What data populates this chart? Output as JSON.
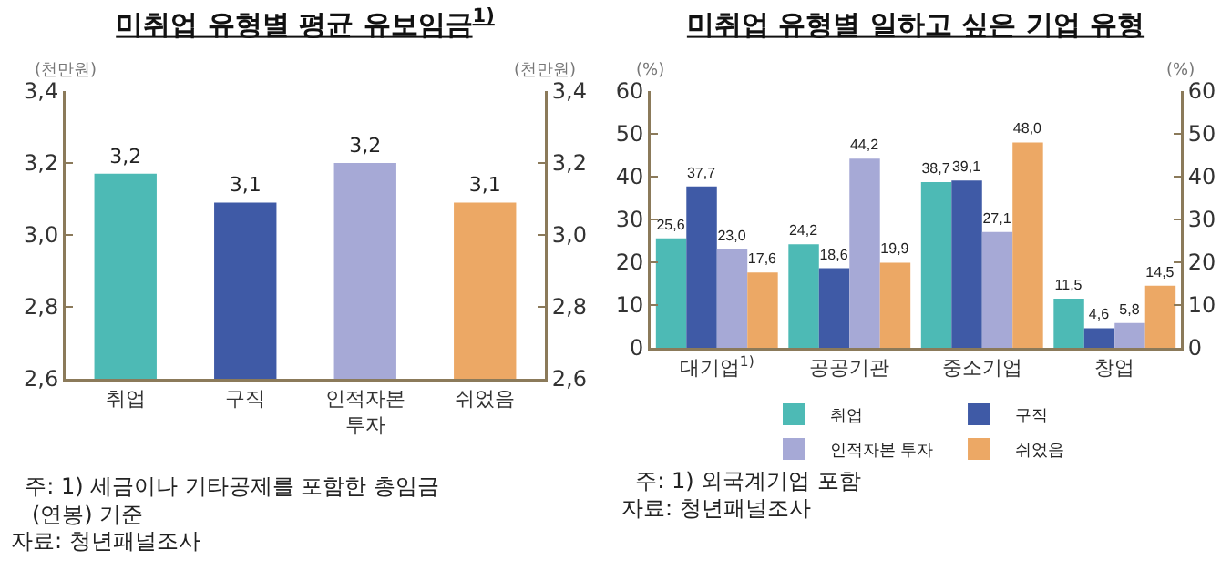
{
  "chart_data": [
    {
      "type": "bar",
      "title": "미취업 유형별 평균 유보임금$^{1)}$",
      "ylabel": "(천만원)",
      "y2label": "(천만원)",
      "categories": [
        "취업",
        "구직",
        "인적자본 투자",
        "쉬었음"
      ],
      "values": [
        3.17,
        3.09,
        3.2,
        3.09
      ],
      "colors": [
        "#4dbab5",
        "#3f5aa6",
        "#a6a9d6",
        "#eca865"
      ],
      "value_labels": [
        "3,2",
        "3,1",
        "3,2",
        "3,1"
      ],
      "ylim": [
        2.6,
        3.4
      ],
      "yticks": [
        {
          "value": 2.6,
          "label": "2,6"
        },
        {
          "value": 2.8,
          "label": "2,8"
        },
        {
          "value": 3.0,
          "label": "3,0"
        },
        {
          "value": 3.2,
          "label": "3,2"
        },
        {
          "value": 3.4,
          "label": "3,4"
        }
      ],
      "y2lim": [
        2.6,
        3.4
      ],
      "y2ticks": [
        {
          "value": 2.6,
          "label": "2,6"
        },
        {
          "value": 2.8,
          "label": "2,8"
        },
        {
          "value": 3.0,
          "label": "3,0"
        },
        {
          "value": 3.2,
          "label": "3,2"
        },
        {
          "value": 3.4,
          "label": "3,4"
        }
      ],
      "legend": false,
      "annotations": [
        "주: 1) 세금이나 기타공제를 포함한 총임금 (연봉) 기준",
        "자료: 청년패널조사"
      ]
    },
    {
      "type": "bar",
      "title": "미취업 유형별 일하고 싶은 기업 유형",
      "ylabel": "(%)",
      "y2label": "(%)",
      "categories": [
        "대기업$^{1)}$",
        "공공기관",
        "중소기업",
        "창업"
      ],
      "series": [
        {
          "name": "취업",
          "color": "#4dbab5",
          "values": [
            25.6,
            24.2,
            38.7,
            11.5
          ],
          "value_labels": [
            "25,6",
            "24,2",
            "38,7",
            "11,5"
          ]
        },
        {
          "name": "구직",
          "color": "#3f5aa6",
          "values": [
            37.7,
            18.6,
            39.1,
            4.6
          ],
          "value_labels": [
            "37,7",
            "18,6",
            "39,1",
            "4,6"
          ]
        },
        {
          "name": "인적자본 투자",
          "color": "#a6a9d6",
          "values": [
            23.0,
            44.2,
            27.1,
            5.8
          ],
          "value_labels": [
            "23,0",
            "44,2",
            "27,1",
            "5,8"
          ]
        },
        {
          "name": "쉬었음",
          "color": "#eca865",
          "values": [
            17.6,
            19.9,
            48.0,
            14.5
          ],
          "value_labels": [
            "17,6",
            "19,9",
            "48,0",
            "14,5"
          ]
        }
      ],
      "ylim": [
        0,
        60
      ],
      "yticks": [
        0,
        10,
        20,
        30,
        40,
        50,
        60
      ],
      "y2lim": [
        0,
        60
      ],
      "y2ticks": [
        0,
        10,
        20,
        30,
        40,
        50,
        60
      ],
      "legend": "bottom",
      "annotations": [
        "주: 1) 외국계기업 포함",
        "자료: 청년패널조사"
      ]
    }
  ]
}
